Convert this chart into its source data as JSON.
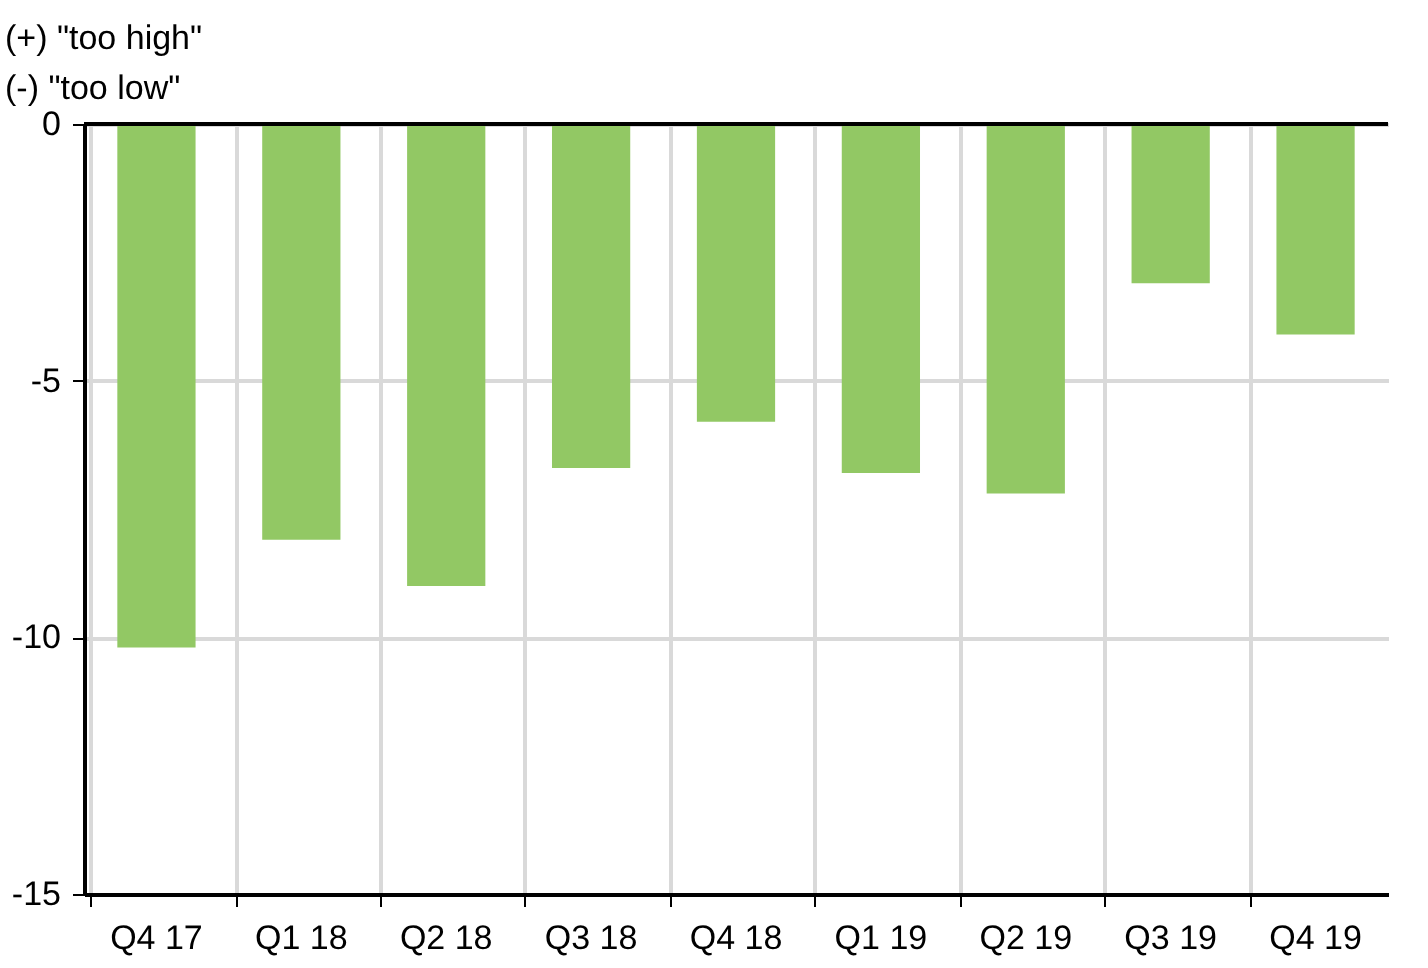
{
  "chart_data": {
    "type": "bar",
    "ylabel": "(+) \"too high\"\n(-) \"too low\"",
    "categories": [
      "Q4 17",
      "Q1 18",
      "Q2 18",
      "Q3 18",
      "Q4 18",
      "Q1 19",
      "Q2 19",
      "Q3 19",
      "Q4 19"
    ],
    "values": [
      -10.2,
      -8.1,
      -9.0,
      -6.7,
      -5.8,
      -6.8,
      -7.2,
      -3.1,
      -4.1
    ],
    "color": "#92c864",
    "ylim": [
      -15,
      0
    ],
    "yticks": [
      -15,
      -10,
      -5,
      0
    ],
    "grid": true,
    "ref_lines": [
      {
        "axis": "y",
        "value": 0,
        "color": "#000000"
      }
    ]
  }
}
